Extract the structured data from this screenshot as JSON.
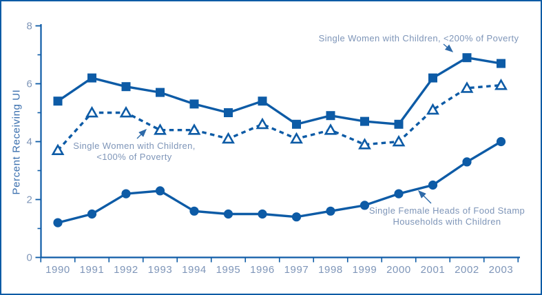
{
  "figure": {
    "border_color": "#0d5ba6",
    "background_color": "#ffffff"
  },
  "chart_data": {
    "type": "line",
    "title": "",
    "xlabel": "",
    "ylabel": "Percent Receiving UI",
    "ylim": [
      0,
      8
    ],
    "yticks_major": [
      0,
      2,
      4,
      6,
      8
    ],
    "yticks_minor": [
      1,
      3,
      5,
      7
    ],
    "grid": false,
    "legend_position": "inline-annotations",
    "x": [
      1990,
      1991,
      1992,
      1993,
      1994,
      1995,
      1996,
      1997,
      1998,
      1999,
      2000,
      2001,
      2002,
      2003
    ],
    "series": [
      {
        "name": "Single Women with Children, <200% of Poverty",
        "marker": "filled-square",
        "line_style": "solid",
        "color": "#0d5ba6",
        "values": [
          5.4,
          6.2,
          5.9,
          5.7,
          5.3,
          5.0,
          5.4,
          4.6,
          4.9,
          4.7,
          4.6,
          6.2,
          6.9,
          6.7
        ]
      },
      {
        "name": "Single Women with Children, <100% of Poverty",
        "marker": "open-triangle",
        "line_style": "dashed",
        "color": "#0d5ba6",
        "values": [
          3.7,
          5.0,
          5.0,
          4.4,
          4.4,
          4.1,
          4.6,
          4.1,
          4.4,
          3.9,
          4.0,
          5.1,
          5.85,
          5.95
        ]
      },
      {
        "name": "Single Female Heads of Food Stamp Households with Children",
        "marker": "filled-circle",
        "line_style": "solid",
        "color": "#0d5ba6",
        "values": [
          1.2,
          1.5,
          2.2,
          2.3,
          1.6,
          1.5,
          1.5,
          1.4,
          1.6,
          1.8,
          2.2,
          2.5,
          3.3,
          4.0
        ]
      }
    ],
    "annotations": [
      {
        "lines": [
          "Single Women with Children, <200% of Poverty"
        ]
      },
      {
        "lines": [
          "Single Women with Children,",
          "<100% of Poverty"
        ]
      },
      {
        "lines": [
          "Single Female Heads of Food Stamp",
          "Households with Children"
        ]
      }
    ],
    "colors": {
      "line": "#0d5ba6",
      "tick_label_text": "#7e95b8",
      "annotation_text": "#7e95b8",
      "axis_title_text": "#3a6fae"
    }
  }
}
